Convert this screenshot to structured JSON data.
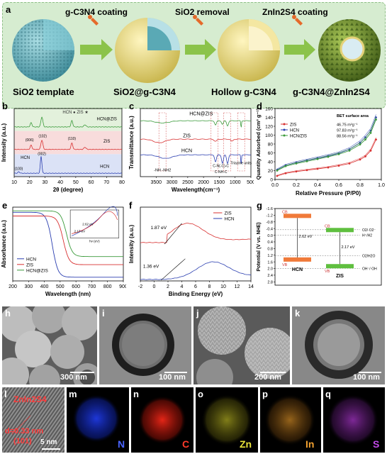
{
  "panel_letters": {
    "a": "a",
    "b": "b",
    "c": "c",
    "d": "d",
    "e": "e",
    "f": "f",
    "g": "g",
    "h": "h",
    "i": "i",
    "j": "j",
    "k": "k",
    "l": "l",
    "m": "m",
    "n": "n",
    "o": "o",
    "p": "p",
    "q": "q"
  },
  "scheme": {
    "steps": [
      "g-C3N4 coating",
      "SiO2 removal",
      "ZnIn2S4 coating"
    ],
    "stages": [
      "SiO2 template",
      "SiO2@g-C3N4",
      "Hollow g-C3N4",
      "g-C3N4@ZnIn2S4"
    ]
  },
  "chart_data": [
    {
      "id": "b",
      "type": "line",
      "xlabel": "2θ (degree)",
      "ylabel": "Intensity (a.u.)",
      "xlim": [
        10,
        80
      ],
      "xticks": [
        10,
        20,
        30,
        40,
        50,
        60,
        70,
        80
      ],
      "legend": "HCN ● ZIS ★",
      "series": [
        {
          "name": "HCN@ZIS",
          "color": "#3a9a3a"
        },
        {
          "name": "ZIS",
          "color": "#d83030"
        },
        {
          "name": "HCN",
          "color": "#2a3eb0"
        }
      ],
      "peak_labels": [
        "(006)",
        "(102)",
        "(110)",
        "(100)",
        "(002)"
      ]
    },
    {
      "id": "c",
      "type": "line",
      "xlabel": "Wavelength(cm⁻¹)",
      "ylabel": "Transmittance (a.u.)",
      "xlim": [
        4000,
        500
      ],
      "xticks": [
        3500,
        3000,
        2500,
        2000,
        1500,
        1000,
        500
      ],
      "series": [
        {
          "name": "HCN@ZIS",
          "color": "#3a9a3a"
        },
        {
          "name": "ZIS",
          "color": "#d83030"
        },
        {
          "name": "HCN",
          "color": "#2a3eb0"
        }
      ],
      "annotations": [
        "-NH  -NH2",
        "C-N(-C)-C",
        "C-NH-C",
        "Triazine units"
      ]
    },
    {
      "id": "d",
      "type": "line",
      "xlabel": "Relative Pressure (P/P0)",
      "ylabel": "Quantity Adsorbed (cm³ g⁻¹)",
      "xlim": [
        0,
        1.0
      ],
      "ylim": [
        0,
        160
      ],
      "xticks": [
        "0.0",
        "0.2",
        "0.4",
        "0.6",
        "0.8",
        "1.0"
      ],
      "yticks": [
        "0",
        "20",
        "40",
        "60",
        "80",
        "100",
        "120",
        "140",
        "160"
      ],
      "legend_title": "BET surface area",
      "series": [
        {
          "name": "ZIS",
          "bet": "46.75 m²g⁻¹",
          "color": "#d83030",
          "x": [
            0.02,
            0.1,
            0.2,
            0.3,
            0.4,
            0.5,
            0.6,
            0.7,
            0.8,
            0.85,
            0.9,
            0.95
          ],
          "y": [
            8,
            14,
            18,
            21,
            24,
            27,
            31,
            36,
            45,
            52,
            65,
            90
          ]
        },
        {
          "name": "HCN",
          "bet": "97.83 m²g⁻¹",
          "color": "#2a3eb0",
          "x": [
            0.02,
            0.1,
            0.2,
            0.3,
            0.4,
            0.5,
            0.6,
            0.7,
            0.8,
            0.85,
            0.9,
            0.95
          ],
          "y": [
            22,
            32,
            38,
            43,
            48,
            53,
            59,
            68,
            83,
            95,
            110,
            140
          ]
        },
        {
          "name": "HCN/ZIS",
          "bet": "88.56 m²g⁻¹",
          "color": "#3a9a3a",
          "x": [
            0.02,
            0.1,
            0.2,
            0.3,
            0.4,
            0.5,
            0.6,
            0.7,
            0.8,
            0.85,
            0.9,
            0.95
          ],
          "y": [
            20,
            30,
            36,
            41,
            46,
            51,
            57,
            65,
            79,
            90,
            105,
            135
          ]
        }
      ]
    },
    {
      "id": "e",
      "type": "line",
      "xlabel": "Wavelength (nm)",
      "ylabel": "Absorbance (a.u.)",
      "xlim": [
        200,
        900
      ],
      "xticks": [
        200,
        300,
        400,
        500,
        600,
        700,
        800,
        900
      ],
      "inset": {
        "xlabel": "hv (eV)",
        "values": [
          "2.62 eV",
          "2.17 eV"
        ]
      },
      "series": [
        {
          "name": "HCN",
          "color": "#2a3eb0"
        },
        {
          "name": "ZIS",
          "color": "#d83030"
        },
        {
          "name": "HCN@ZIS",
          "color": "#3a9a3a"
        }
      ]
    },
    {
      "id": "f",
      "type": "line",
      "xlabel": "Binding Energy (eV)",
      "ylabel": "Intensity (a.u.)",
      "xlim": [
        -2,
        14
      ],
      "xticks": [
        -2,
        0,
        2,
        4,
        6,
        8,
        10,
        12,
        14
      ],
      "annotations": [
        "1.87 eV",
        "1.36 eV"
      ],
      "series": [
        {
          "name": "ZIS",
          "color": "#d83030"
        },
        {
          "name": "HCN",
          "color": "#2a3eb0"
        }
      ]
    },
    {
      "id": "g",
      "type": "diagram",
      "ylabel": "Potential (V vs. NHE)",
      "ylim": [
        -1.6,
        3.0
      ],
      "yticks": [
        "-1.6",
        "-1.2",
        "-0.8",
        "-0.4",
        "0.0",
        "0.4",
        "0.8",
        "1.2",
        "1.6",
        "2.0",
        "2.4",
        "2.8"
      ],
      "bands": [
        {
          "name": "HCN",
          "cb": "CB",
          "vb": "VB",
          "gap": "2.62 eV"
        },
        {
          "name": "ZIS",
          "cb": "CB",
          "vb": "VB",
          "gap": "2.17 eV"
        }
      ],
      "redox": [
        "O2/·O2⁻",
        "H⁺/H2",
        "O2/H2O",
        "OH⁻/·OH"
      ]
    }
  ],
  "micrographs": {
    "h_scale": "300 nm",
    "i_scale": "100 nm",
    "j_scale": "200 nm",
    "k_scale": "100 nm",
    "l_phase": "ZnIn2S4",
    "l_spacing": "d=0.33 nm",
    "l_plane": "(101)",
    "l_scale": "5 nm",
    "maps": [
      "N",
      "C",
      "Zn",
      "In",
      "S"
    ]
  }
}
